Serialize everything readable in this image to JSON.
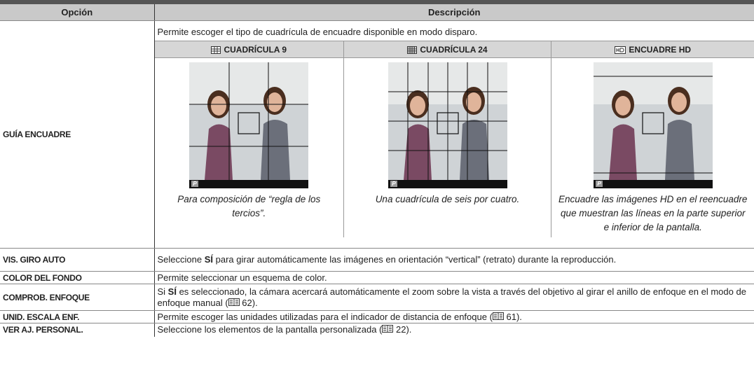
{
  "table": {
    "headers": [
      "Opción",
      "Descripción"
    ],
    "rows": [
      {
        "option": "GUÍA ENCUADRE",
        "description": "Permite escoger el tipo de cuadrícula de encuadre disponible en modo disparo.",
        "grids": [
          {
            "label": "CUADRÍCULA 9",
            "badge": "P",
            "caption": "Para composición de “regla de los tercios”."
          },
          {
            "label": "CUADRÍCULA 24",
            "badge": "P",
            "caption": "Una cuadrícula de seis por cuatro."
          },
          {
            "label": "ENCUADRE HD",
            "badge": "P",
            "caption": "Encuadre las imágenes HD en el reencuadre que muestran las líneas en la parte superior e inferior de la pantalla."
          }
        ]
      },
      {
        "option": "VIS. GIRO AUTO",
        "description": [
          "Seleccione ",
          "SÍ",
          " para girar automáticamente las imágenes en orientación “vertical” (retrato) durante la reproducción."
        ]
      },
      {
        "option": "COLOR DEL FONDO",
        "description": "Permite seleccionar un esquema de color."
      },
      {
        "option": "COMPROB. ENFOQUE",
        "description": [
          "Si ",
          "SÍ",
          " es seleccionado, la cámara acercará automáticamente el zoom sobre la vista a través del objetivo al girar el anillo de enfoque en el modo de enfoque manual (",
          " 62)."
        ]
      },
      {
        "option": "UNID. ESCALA ENF.",
        "description": [
          "Permite escoger las unidades utilizadas para el indicador de distancia de enfoque (",
          " 61)."
        ]
      },
      {
        "option": "VER AJ. PERSONAL.",
        "description": [
          "Seleccione los elementos de la pantalla personalizada (",
          " 22)."
        ]
      }
    ]
  }
}
